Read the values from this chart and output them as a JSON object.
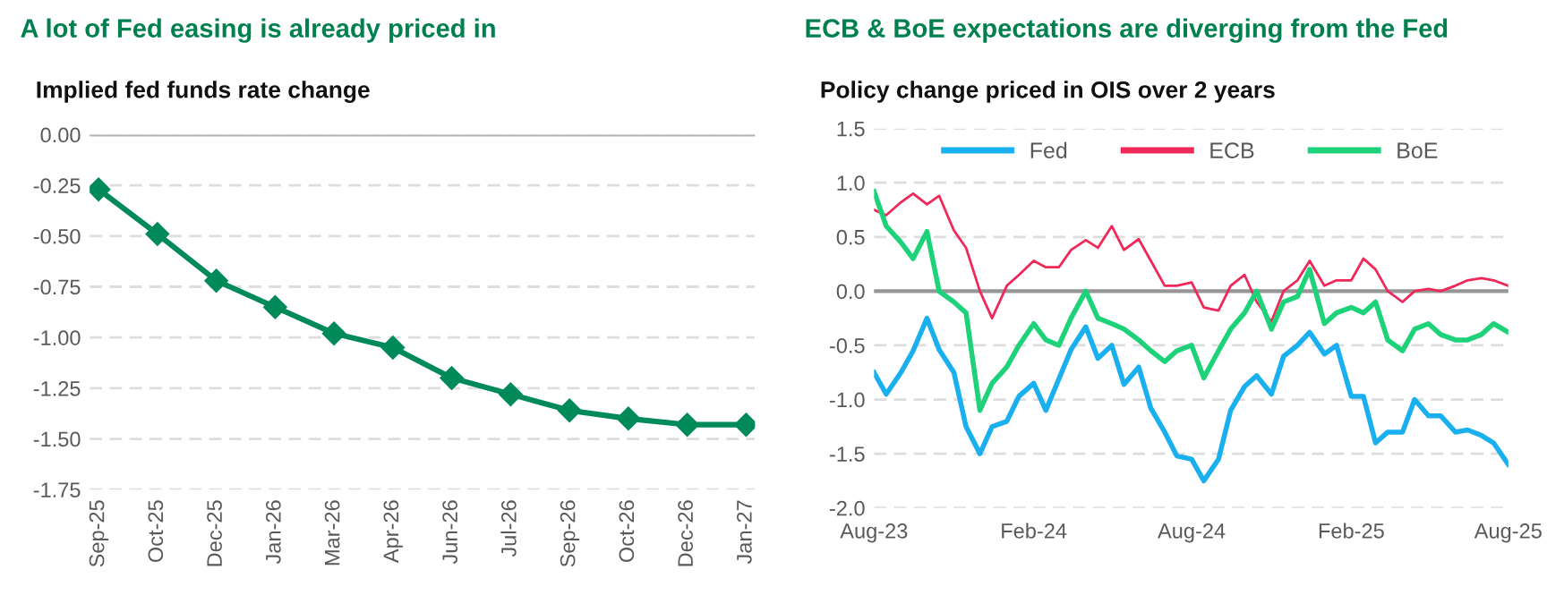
{
  "chart_data": [
    {
      "type": "line",
      "title": "A lot of Fed easing is already priced in",
      "subtitle": "Implied fed funds rate change",
      "categories": [
        "Sep-25",
        "Oct-25",
        "Dec-25",
        "Jan-26",
        "Mar-26",
        "Apr-26",
        "Jun-26",
        "Jul-26",
        "Sep-26",
        "Oct-26",
        "Dec-26",
        "Jan-27"
      ],
      "series": [
        {
          "color": "#008a5a",
          "values": [
            -0.27,
            -0.49,
            -0.72,
            -0.85,
            -0.98,
            -1.05,
            -1.2,
            -1.28,
            -1.36,
            -1.4,
            -1.43,
            -1.43
          ]
        }
      ],
      "ylim": [
        -1.75,
        0
      ],
      "yticks": [
        {
          "value": 0,
          "label": "0.00"
        },
        {
          "value": -0.25,
          "label": "-0.25"
        },
        {
          "value": -0.5,
          "label": "-0.50"
        },
        {
          "value": -0.75,
          "label": "-0.75"
        },
        {
          "value": -1,
          "label": "-1.00"
        },
        {
          "value": -1.25,
          "label": "-1.25"
        },
        {
          "value": -1.5,
          "label": "-1.50"
        },
        {
          "value": -1.75,
          "label": "-1.75"
        }
      ],
      "ref_lines": [
        {
          "axis": "y",
          "value": 0,
          "color": "#b4b4b4"
        }
      ],
      "grid": "y",
      "marker": "diamond",
      "line_style": "solid",
      "legend": false
    },
    {
      "type": "line",
      "title": "ECB & BoE expectations are diverging from the Fed",
      "subtitle": "Policy change priced in OIS over 2 years",
      "x": [
        "2023-08-01",
        "2023-08-15",
        "2023-09-01",
        "2023-09-15",
        "2023-10-01",
        "2023-10-15",
        "2023-11-01",
        "2023-11-15",
        "2023-12-01",
        "2023-12-15",
        "2024-01-01",
        "2024-01-15",
        "2024-02-01",
        "2024-02-15",
        "2024-03-01",
        "2024-03-15",
        "2024-04-01",
        "2024-04-15",
        "2024-05-01",
        "2024-05-15",
        "2024-06-01",
        "2024-06-15",
        "2024-07-01",
        "2024-07-15",
        "2024-08-01",
        "2024-08-15",
        "2024-09-01",
        "2024-09-15",
        "2024-10-01",
        "2024-10-15",
        "2024-11-01",
        "2024-11-15",
        "2024-12-01",
        "2024-12-15",
        "2025-01-01",
        "2025-01-15",
        "2025-02-01",
        "2025-02-15",
        "2025-03-01",
        "2025-03-15",
        "2025-04-01",
        "2025-04-15",
        "2025-05-01",
        "2025-05-15",
        "2025-06-01",
        "2025-06-15",
        "2025-07-01",
        "2025-07-15",
        "2025-08-01"
      ],
      "series": [
        {
          "name": "Fed",
          "color": "#1ab0ef",
          "values": [
            -0.75,
            -0.95,
            -0.75,
            -0.55,
            -0.25,
            -0.54,
            -0.75,
            -1.25,
            -1.5,
            -1.25,
            -1.2,
            -0.97,
            -0.85,
            -1.1,
            -0.81,
            -0.54,
            -0.33,
            -0.62,
            -0.5,
            -0.86,
            -0.7,
            -1.08,
            -1.3,
            -1.52,
            -1.55,
            -1.75,
            -1.55,
            -1.1,
            -0.88,
            -0.78,
            -0.95,
            -0.6,
            -0.5,
            -0.38,
            -0.58,
            -0.5,
            -0.97,
            -0.97,
            -1.4,
            -1.3,
            -1.3,
            -1.0,
            -1.15,
            -1.15,
            -1.3,
            -1.28,
            -1.33,
            -1.4,
            -1.6
          ]
        },
        {
          "name": "ECB",
          "color": "#f0285a",
          "values": [
            0.75,
            0.7,
            0.82,
            0.9,
            0.8,
            0.88,
            0.56,
            0.4,
            0.0,
            -0.25,
            0.05,
            0.15,
            0.28,
            0.22,
            0.22,
            0.38,
            0.47,
            0.4,
            0.6,
            0.38,
            0.48,
            0.28,
            0.05,
            0.05,
            0.08,
            -0.15,
            -0.18,
            0.05,
            0.15,
            -0.1,
            -0.28,
            0.0,
            0.1,
            0.28,
            0.05,
            0.1,
            0.1,
            0.3,
            0.2,
            0.0,
            -0.1,
            0.0,
            0.02,
            0.0,
            0.05,
            0.1,
            0.12,
            0.1,
            0.05
          ]
        },
        {
          "name": "BoE",
          "color": "#1ed27a",
          "values": [
            0.92,
            0.6,
            0.45,
            0.3,
            0.55,
            0.0,
            -0.1,
            -0.2,
            -1.1,
            -0.85,
            -0.7,
            -0.5,
            -0.3,
            -0.45,
            -0.5,
            -0.25,
            0.0,
            -0.25,
            -0.3,
            -0.35,
            -0.45,
            -0.55,
            -0.65,
            -0.55,
            -0.5,
            -0.8,
            -0.55,
            -0.35,
            -0.2,
            0.0,
            -0.35,
            -0.1,
            -0.05,
            0.2,
            -0.3,
            -0.2,
            -0.15,
            -0.2,
            -0.1,
            -0.45,
            -0.55,
            -0.35,
            -0.3,
            -0.4,
            -0.45,
            -0.45,
            -0.4,
            -0.3,
            -0.38
          ]
        }
      ],
      "xlim": [
        "2023-08-01",
        "2025-08-01"
      ],
      "xticks": [
        {
          "value": "2023-08-01",
          "label": "Aug-23"
        },
        {
          "value": "2024-02-01",
          "label": "Feb-24"
        },
        {
          "value": "2024-08-01",
          "label": "Aug-24"
        },
        {
          "value": "2025-02-01",
          "label": "Feb-25"
        },
        {
          "value": "2025-08-01",
          "label": "Aug-25"
        }
      ],
      "ylim": [
        -2.0,
        1.5
      ],
      "yticks": [
        {
          "value": 1.5,
          "label": "1.5"
        },
        {
          "value": 1.0,
          "label": "1.0"
        },
        {
          "value": 0.5,
          "label": "0.5"
        },
        {
          "value": 0.0,
          "label": "0.0"
        },
        {
          "value": -0.5,
          "label": "-0.5"
        },
        {
          "value": -1.0,
          "label": "-1.0"
        },
        {
          "value": -1.5,
          "label": "-1.5"
        },
        {
          "value": -2.0,
          "label": "-2.0"
        }
      ],
      "ref_lines": [
        {
          "axis": "y",
          "value": 0,
          "color": "#969696"
        }
      ],
      "grid": "y",
      "marker": "none",
      "line_style": "solid",
      "legend": "top"
    }
  ]
}
